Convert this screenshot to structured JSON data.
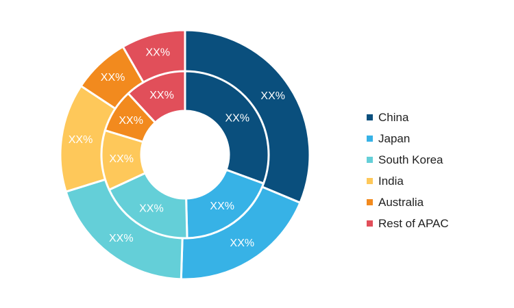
{
  "chart_data": {
    "type": "pie",
    "title": "",
    "categories": [
      "China",
      "Japan",
      "South Korea",
      "India",
      "Australia",
      "Rest of APAC"
    ],
    "colors": [
      "#0a4f7d",
      "#37b2e6",
      "#64cfd8",
      "#fec85a",
      "#f28a1e",
      "#e14f5a"
    ],
    "series": [
      {
        "ring": "outer",
        "values": [
          31.3,
          19.2,
          19.7,
          14.1,
          7.4,
          8.3
        ]
      },
      {
        "ring": "inner",
        "values": [
          30.6,
          19.0,
          18.5,
          11.6,
          8.4,
          11.9
        ]
      }
    ],
    "outer_labels": [
      "XX%",
      "XX%",
      "XX%",
      "XX%",
      "XX%",
      "XX%"
    ],
    "inner_labels": [
      "XX%",
      "XX%",
      "XX%",
      "XX%",
      "XX%",
      "XX%"
    ],
    "legend_position": "right"
  },
  "legend": {
    "items": [
      {
        "label": "China",
        "color": "#0a4f7d"
      },
      {
        "label": "Japan",
        "color": "#37b2e6"
      },
      {
        "label": "South Korea",
        "color": "#64cfd8"
      },
      {
        "label": "India",
        "color": "#fec85a"
      },
      {
        "label": "Australia",
        "color": "#f28a1e"
      },
      {
        "label": "Rest of APAC",
        "color": "#e14f5a"
      }
    ]
  }
}
